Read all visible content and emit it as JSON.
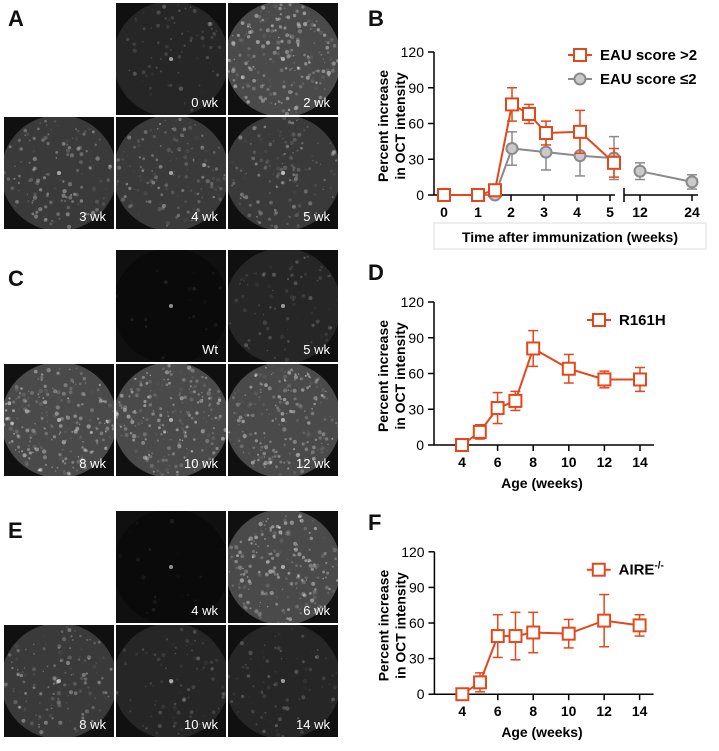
{
  "panels": [
    {
      "label": "A",
      "tiles": [
        {
          "caption": "0 wk",
          "tone": "dark"
        },
        {
          "caption": "2 wk",
          "tone": "bright"
        },
        {
          "caption": "3 wk",
          "tone": "medium"
        },
        {
          "caption": "4 wk",
          "tone": "medium"
        },
        {
          "caption": "5 wk",
          "tone": "medium"
        }
      ]
    },
    {
      "label": "C",
      "tiles": [
        {
          "caption": "Wt",
          "tone": "black"
        },
        {
          "caption": "5 wk",
          "tone": "dark"
        },
        {
          "caption": "8 wk",
          "tone": "bright"
        },
        {
          "caption": "10 wk",
          "tone": "bright"
        },
        {
          "caption": "12 wk",
          "tone": "bright"
        }
      ]
    },
    {
      "label": "E",
      "tiles": [
        {
          "caption": "4 wk",
          "tone": "black"
        },
        {
          "caption": "6 wk",
          "tone": "bright"
        },
        {
          "caption": "8 wk",
          "tone": "medium"
        },
        {
          "caption": "10 wk",
          "tone": "dark"
        },
        {
          "caption": "14 wk",
          "tone": "dark"
        }
      ]
    }
  ],
  "colors": {
    "orange": "#e5461b",
    "gray": "#8a8a8a"
  },
  "chart_data": [
    {
      "panel": "B",
      "type": "line",
      "ylabel": [
        "Percent increase",
        "in OCT intensity"
      ],
      "xlabel": "Time after immunization (weeks)",
      "ylim": [
        0,
        120
      ],
      "yticks": [
        0,
        30,
        60,
        90,
        120
      ],
      "x_axis_break": true,
      "xticks_segment1": [
        "0",
        "1",
        "2",
        "3",
        "4",
        "5"
      ],
      "xticks_segment2": [
        "12",
        "24"
      ],
      "series": [
        {
          "name": "EAU score >2",
          "color": "#e5461b",
          "marker": "square",
          "x": [
            0,
            1,
            1.5,
            2,
            2.5,
            3,
            4,
            5
          ],
          "y": [
            0,
            0,
            4,
            76,
            68,
            52,
            53,
            27
          ],
          "err": [
            0,
            0,
            3,
            14,
            8,
            10,
            18,
            12
          ]
        },
        {
          "name": "EAU score ≤2",
          "color": "#8a8a8a",
          "marker": "circle",
          "x": [
            1,
            1.5,
            2,
            3,
            4,
            5,
            12,
            24
          ],
          "y": [
            0,
            0,
            39,
            36,
            33,
            31,
            20,
            11
          ],
          "err": [
            0,
            0,
            14,
            15,
            17,
            18,
            7,
            6
          ]
        }
      ]
    },
    {
      "panel": "D",
      "type": "line",
      "ylabel": [
        "Percent increase",
        "in OCT intensity"
      ],
      "xlabel": "Age (weeks)",
      "ylim": [
        0,
        120
      ],
      "yticks": [
        0,
        30,
        60,
        90,
        120
      ],
      "xticks": [
        "4",
        "6",
        "8",
        "10",
        "12",
        "14"
      ],
      "series": [
        {
          "name": "R161H",
          "color": "#e5461b",
          "marker": "square",
          "x": [
            4,
            5,
            6,
            7,
            8,
            10,
            12,
            14
          ],
          "y": [
            0,
            11,
            31,
            37,
            81,
            64,
            55,
            55
          ],
          "err": [
            0,
            6,
            13,
            8,
            15,
            12,
            7,
            10
          ]
        }
      ]
    },
    {
      "panel": "F",
      "type": "line",
      "ylabel": [
        "Percent increase",
        "in OCT intensity"
      ],
      "xlabel": "Age (weeks)",
      "ylim": [
        0,
        120
      ],
      "yticks": [
        0,
        30,
        60,
        90,
        120
      ],
      "xticks": [
        "4",
        "6",
        "8",
        "10",
        "12",
        "14"
      ],
      "series": [
        {
          "name": "AIRE",
          "name_sup": "-/-",
          "color": "#e5461b",
          "marker": "square",
          "x": [
            4,
            5,
            6,
            7,
            8,
            10,
            12,
            14
          ],
          "y": [
            0,
            10,
            49,
            49,
            52,
            51,
            62,
            58
          ],
          "err": [
            0,
            8,
            18,
            20,
            17,
            12,
            22,
            9
          ]
        }
      ]
    }
  ]
}
